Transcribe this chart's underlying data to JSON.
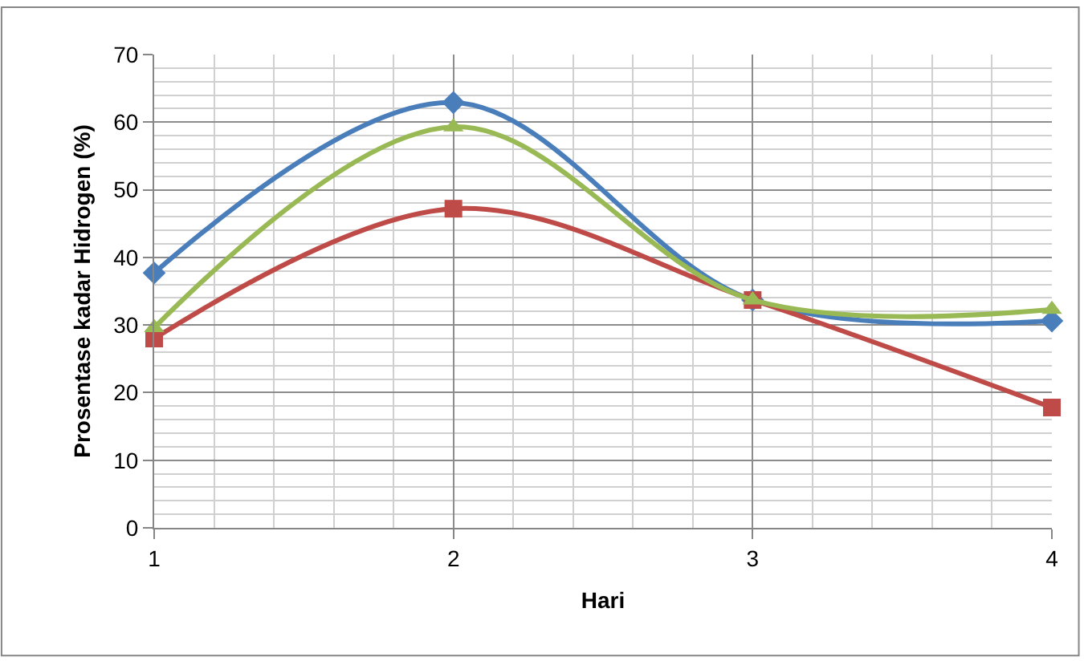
{
  "chart_data": {
    "type": "line",
    "xlabel": "Hari",
    "ylabel": "Prosentase kadar Hidrogen (%)",
    "x": [
      1,
      2,
      3,
      4
    ],
    "series": [
      {
        "color": "#4a7ebb",
        "marker": "diamond",
        "values": [
          37.7,
          62.9,
          33.7,
          30.6
        ]
      },
      {
        "color": "#be4b48",
        "marker": "square",
        "values": [
          28,
          47.2,
          33.7,
          17.8
        ]
      },
      {
        "color": "#98b954",
        "marker": "triangle",
        "values": [
          29.6,
          59.3,
          33.7,
          32.3
        ]
      }
    ],
    "xlim": [
      1,
      4
    ],
    "xticks": [
      1,
      2,
      3,
      4
    ],
    "ylim": [
      0,
      70
    ],
    "yticks": [
      0,
      10,
      20,
      30,
      40,
      50,
      60,
      70
    ],
    "grid": true
  }
}
